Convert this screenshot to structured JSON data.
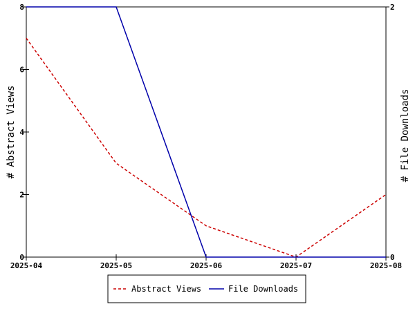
{
  "chart_data": {
    "type": "line",
    "x": [
      "2025-04",
      "2025-05",
      "2025-06",
      "2025-07",
      "2025-08"
    ],
    "series": [
      {
        "name": "Abstract Views",
        "axis": "left",
        "values": [
          7,
          3,
          1,
          0,
          2
        ],
        "color": "#cc0000",
        "style": "dashed"
      },
      {
        "name": "File Downloads",
        "axis": "right",
        "values": [
          2,
          2,
          0,
          0,
          0
        ],
        "color": "#0000aa",
        "style": "solid"
      }
    ],
    "ylabel_left": "# Abstract Views",
    "ylabel_right": "# File Downloads",
    "ylim_left": [
      0,
      8
    ],
    "ylim_right": [
      0,
      2
    ],
    "yticks_left": [
      "0",
      "2",
      "4",
      "6",
      "8"
    ],
    "yticks_right": [
      "0",
      "2"
    ],
    "grid": false,
    "legend_position": "bottom-center"
  }
}
